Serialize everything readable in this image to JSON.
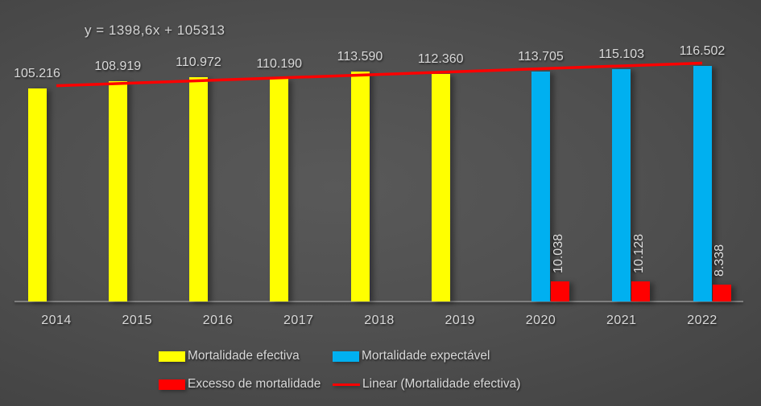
{
  "chart_data": {
    "type": "bar",
    "title": "",
    "xlabel": "",
    "ylabel": "",
    "categories": [
      "2014",
      "2015",
      "2016",
      "2017",
      "2018",
      "2019",
      "2020",
      "2021",
      "2022"
    ],
    "series": [
      {
        "name": "Mortalidade efectiva",
        "color": "#FFFF00",
        "values": [
          105216,
          108919,
          110972,
          110190,
          113590,
          112360,
          null,
          null,
          null
        ],
        "data_labels": [
          "105.216",
          "108.919",
          "110.972",
          "110.190",
          "113.590",
          "112.360",
          null,
          null,
          null
        ],
        "label_orientation": "horizontal"
      },
      {
        "name": "Mortalidade expectável",
        "color": "#00B0F0",
        "values": [
          null,
          null,
          null,
          null,
          null,
          null,
          113705,
          115103,
          116502
        ],
        "data_labels": [
          null,
          null,
          null,
          null,
          null,
          null,
          "113.705",
          "115.103",
          "116.502"
        ],
        "label_orientation": "horizontal"
      },
      {
        "name": "Excesso de mortalidade",
        "color": "#FF0000",
        "values": [
          null,
          null,
          null,
          null,
          null,
          null,
          10038,
          10128,
          8338
        ],
        "data_labels": [
          null,
          null,
          null,
          null,
          null,
          null,
          "10.038",
          "10.128",
          "8.338"
        ],
        "label_orientation": "vertical"
      }
    ],
    "trendline": {
      "name": "Linear (Mortalidade efectiva)",
      "equation": "y = 1398,6x + 105313",
      "slope": 1398.6,
      "intercept": 105313,
      "color": "#FF0000",
      "applies_to": "Mortalidade efectiva"
    },
    "ylim": [
      0,
      149000
    ],
    "grid": false,
    "legend_position": "bottom",
    "legend": [
      {
        "label": "Mortalidade efectiva",
        "marker": "swatch",
        "color": "#FFFF00"
      },
      {
        "label": "Mortalidade expectável",
        "marker": "swatch",
        "color": "#00B0F0"
      },
      {
        "label": "Excesso de mortalidade",
        "marker": "swatch",
        "color": "#FF0000"
      },
      {
        "label": "Linear (Mortalidade efectiva)",
        "marker": "line",
        "color": "#FF0000"
      }
    ],
    "colors": {
      "text": "#D9D9D9",
      "axis_line": "#7F7F7F",
      "background_center": "#595959",
      "background_edge": "#2B2B2B"
    }
  }
}
